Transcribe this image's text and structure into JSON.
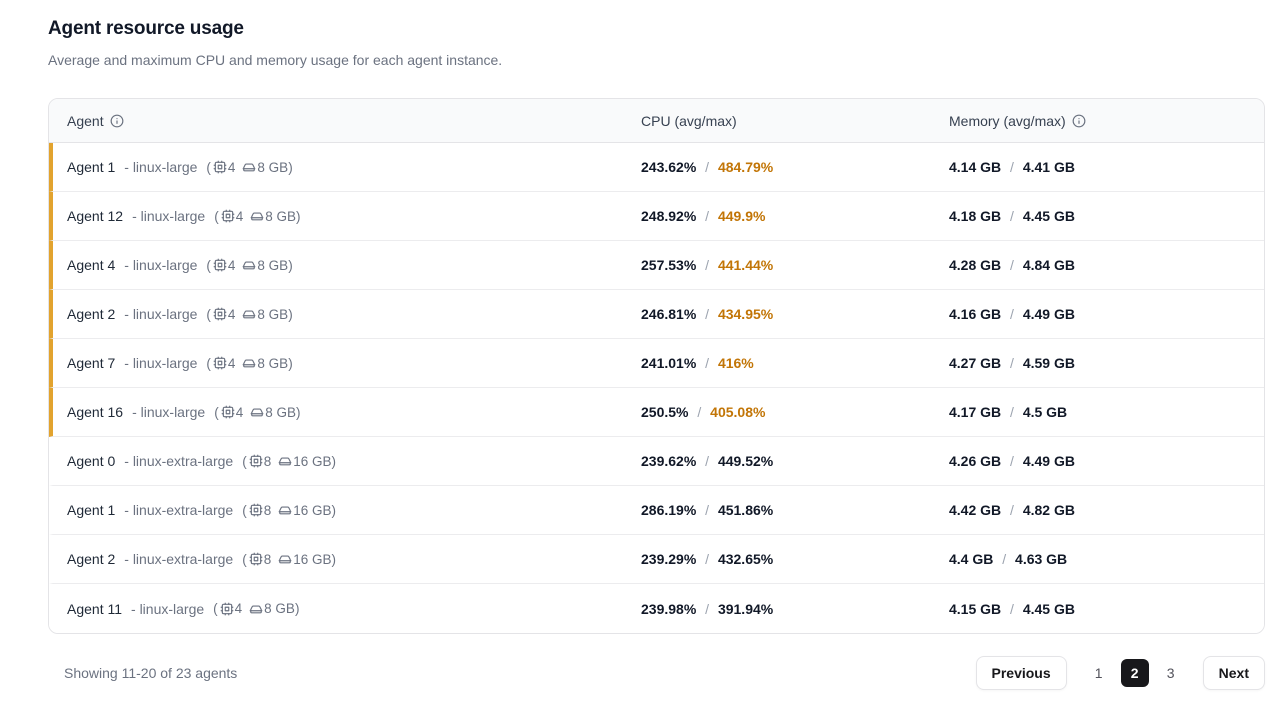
{
  "page": {
    "title": "Agent resource usage",
    "subtitle": "Average and maximum CPU and memory usage for each agent instance."
  },
  "punct": {
    "open": "(",
    "close": ")",
    "slash": "/"
  },
  "table": {
    "columns": {
      "agent": "Agent",
      "cpu": "CPU (avg/max)",
      "memory": "Memory (avg/max)"
    },
    "rows": [
      {
        "name": "Agent 1",
        "meta": "- linux-large",
        "spec_cpu": "4",
        "spec_ram": "8 GB",
        "cpu_avg": "243.62%",
        "cpu_max": "484.79%",
        "mem_avg": "4.14 GB",
        "mem_max": "4.41 GB",
        "flagged": true,
        "cpu_hot": true
      },
      {
        "name": "Agent 12",
        "meta": "- linux-large",
        "spec_cpu": "4",
        "spec_ram": "8 GB",
        "cpu_avg": "248.92%",
        "cpu_max": "449.9%",
        "mem_avg": "4.18 GB",
        "mem_max": "4.45 GB",
        "flagged": true,
        "cpu_hot": true
      },
      {
        "name": "Agent 4",
        "meta": "- linux-large",
        "spec_cpu": "4",
        "spec_ram": "8 GB",
        "cpu_avg": "257.53%",
        "cpu_max": "441.44%",
        "mem_avg": "4.28 GB",
        "mem_max": "4.84 GB",
        "flagged": true,
        "cpu_hot": true
      },
      {
        "name": "Agent 2",
        "meta": "- linux-large",
        "spec_cpu": "4",
        "spec_ram": "8 GB",
        "cpu_avg": "246.81%",
        "cpu_max": "434.95%",
        "mem_avg": "4.16 GB",
        "mem_max": "4.49 GB",
        "flagged": true,
        "cpu_hot": true
      },
      {
        "name": "Agent 7",
        "meta": "- linux-large",
        "spec_cpu": "4",
        "spec_ram": "8 GB",
        "cpu_avg": "241.01%",
        "cpu_max": "416%",
        "mem_avg": "4.27 GB",
        "mem_max": "4.59 GB",
        "flagged": true,
        "cpu_hot": true
      },
      {
        "name": "Agent 16",
        "meta": "- linux-large",
        "spec_cpu": "4",
        "spec_ram": "8 GB",
        "cpu_avg": "250.5%",
        "cpu_max": "405.08%",
        "mem_avg": "4.17 GB",
        "mem_max": "4.5 GB",
        "flagged": true,
        "cpu_hot": true
      },
      {
        "name": "Agent 0",
        "meta": "- linux-extra-large",
        "spec_cpu": "8",
        "spec_ram": "16 GB",
        "cpu_avg": "239.62%",
        "cpu_max": "449.52%",
        "mem_avg": "4.26 GB",
        "mem_max": "4.49 GB",
        "flagged": false,
        "cpu_hot": false
      },
      {
        "name": "Agent 1",
        "meta": "- linux-extra-large",
        "spec_cpu": "8",
        "spec_ram": "16 GB",
        "cpu_avg": "286.19%",
        "cpu_max": "451.86%",
        "mem_avg": "4.42 GB",
        "mem_max": "4.82 GB",
        "flagged": false,
        "cpu_hot": false
      },
      {
        "name": "Agent 2",
        "meta": "- linux-extra-large",
        "spec_cpu": "8",
        "spec_ram": "16 GB",
        "cpu_avg": "239.29%",
        "cpu_max": "432.65%",
        "mem_avg": "4.4 GB",
        "mem_max": "4.63 GB",
        "flagged": false,
        "cpu_hot": false
      },
      {
        "name": "Agent 11",
        "meta": "- linux-large",
        "spec_cpu": "4",
        "spec_ram": "8 GB",
        "cpu_avg": "239.98%",
        "cpu_max": "391.94%",
        "mem_avg": "4.15 GB",
        "mem_max": "4.45 GB",
        "flagged": false,
        "cpu_hot": false
      }
    ]
  },
  "footer": {
    "summary": "Showing 11-20 of 23 agents",
    "prev_label": "Previous",
    "next_label": "Next",
    "pages": [
      "1",
      "2",
      "3"
    ],
    "current_page": "2"
  },
  "colors": {
    "flag_border": "#e2a32e",
    "hot_cpu_text": "#c27506",
    "active_page_bg": "#18181b",
    "header_bg": "#f9fafb"
  }
}
